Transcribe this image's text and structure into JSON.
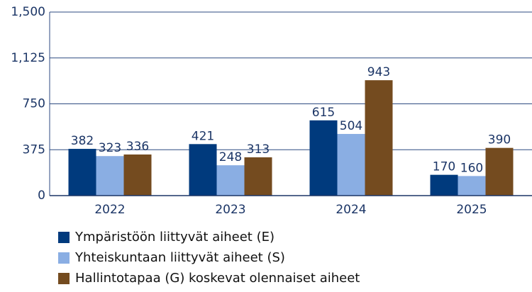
{
  "chart_data": {
    "type": "bar",
    "categories": [
      "2022",
      "2023",
      "2024",
      "2025"
    ],
    "series": [
      {
        "name": "Ympäristöön liittyvät aiheet (E)",
        "color": "#003a7d",
        "values": [
          382,
          421,
          615,
          170
        ]
      },
      {
        "name": "Yhteiskuntaan liittyvät aiheet (S)",
        "color": "#8aaee3",
        "values": [
          323,
          248,
          504,
          160
        ]
      },
      {
        "name": "Hallintotapaa (G) koskevat olennaiset aiheet",
        "color": "#744b1f",
        "values": [
          336,
          313,
          943,
          390
        ]
      }
    ],
    "ylim": [
      0,
      1500
    ],
    "yticks": [
      0,
      375,
      750,
      {
        "value": 1125,
        "label": "1,125"
      },
      {
        "value": 1500,
        "label": "1,500"
      }
    ],
    "grid": true,
    "legend": "bottom"
  }
}
